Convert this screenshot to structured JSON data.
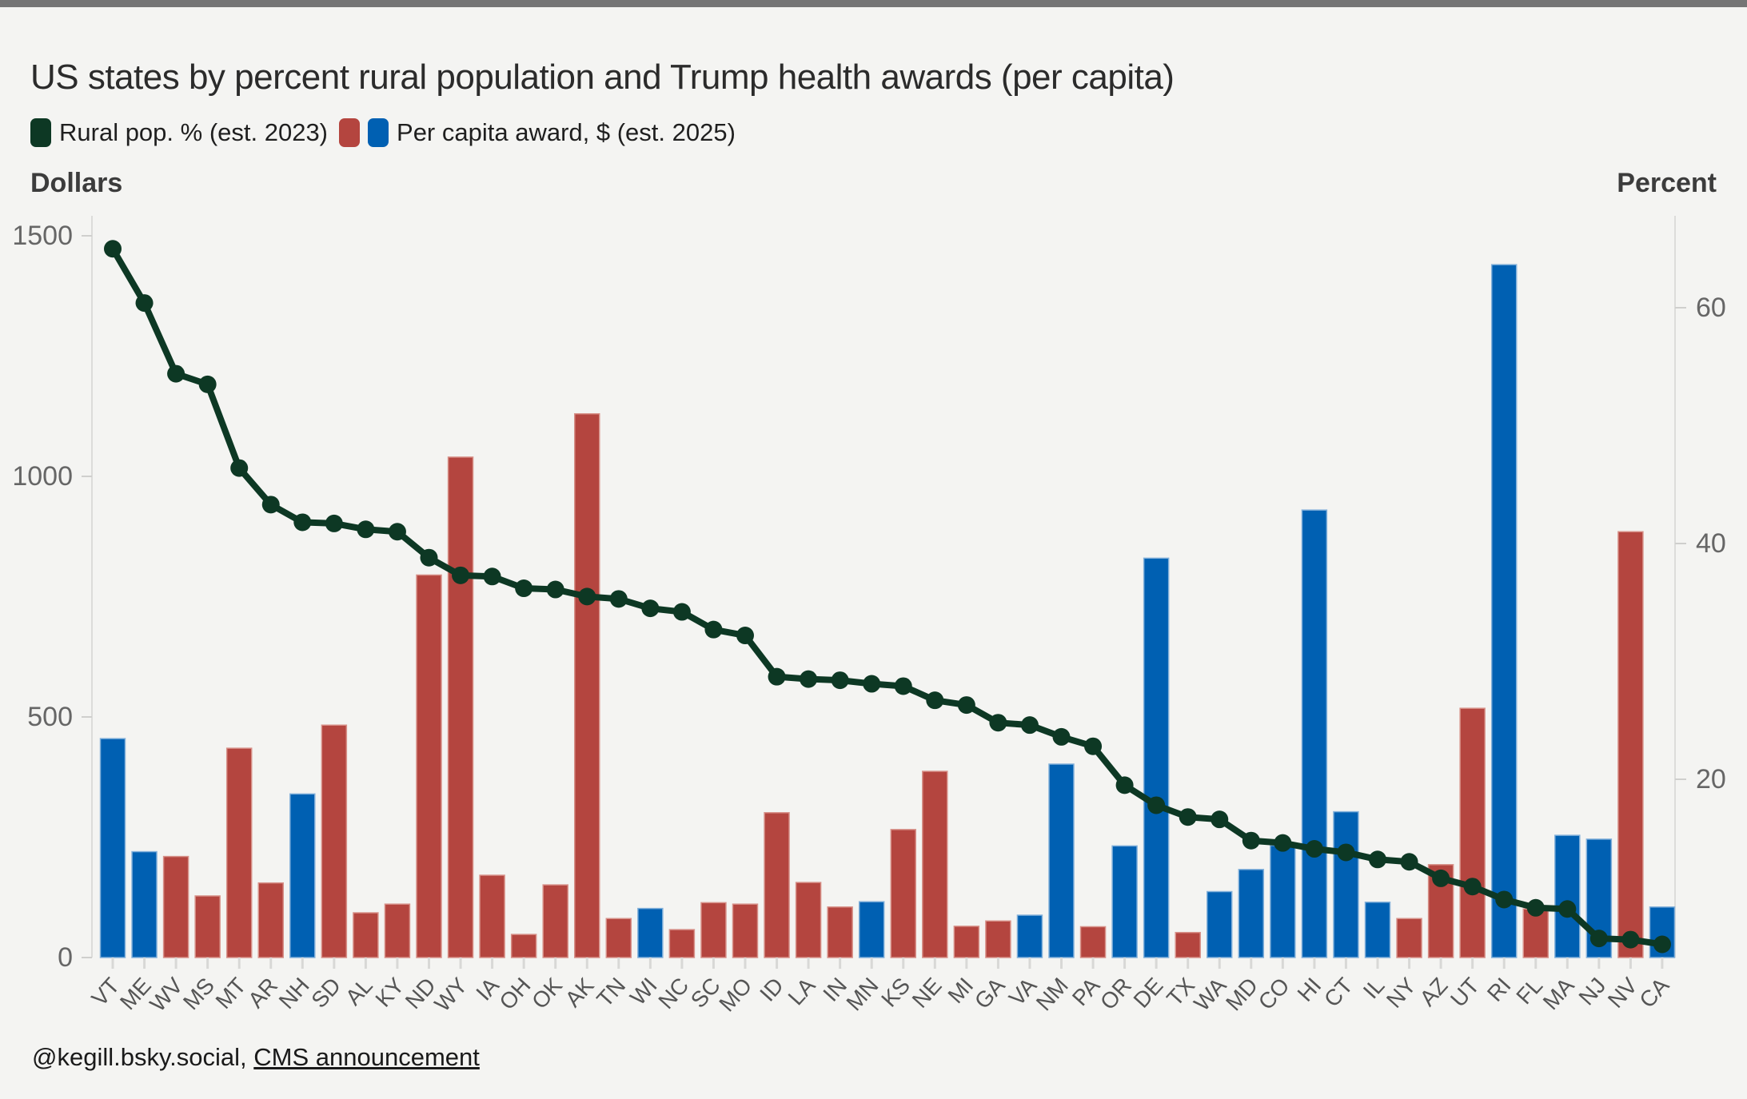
{
  "title": "US states by percent rural population and Trump health awards (per capita)",
  "legend": {
    "rural_label": "Rural pop. % (est. 2023)",
    "award_label": "Per capita award, $ (est. 2025)"
  },
  "left_axis": {
    "label": "Dollars",
    "ticks": [
      0,
      500,
      1000,
      1500
    ],
    "max": 1500
  },
  "right_axis": {
    "label": "Percent",
    "ticks": [
      20,
      40,
      60
    ]
  },
  "footer": {
    "handle": "@kegill.bsky.social, ",
    "link_text": "CMS announcement"
  },
  "colors": {
    "line_green": "#0d3824",
    "bar_red": "#b4453f",
    "bar_red_edge": "#d79088",
    "bar_blue": "#0060b2",
    "bar_blue_edge": "#82b0da",
    "axis_line": "#dcdcda",
    "tick_text": "#666666",
    "x_label_text": "#555555",
    "background": "#f4f4f2",
    "topbar_gray": "#757575"
  },
  "chart_data": {
    "type": "bar+line (dual axis)",
    "title": "US states by percent rural population and Trump health awards (per capita)",
    "categories": [
      "VT",
      "ME",
      "WV",
      "MS",
      "MT",
      "AR",
      "NH",
      "SD",
      "AL",
      "KY",
      "ND",
      "WY",
      "IA",
      "OH",
      "OK",
      "AK",
      "TN",
      "WI",
      "NC",
      "SC",
      "MO",
      "ID",
      "LA",
      "IN",
      "MN",
      "KS",
      "NE",
      "MI",
      "GA",
      "VA",
      "NM",
      "PA",
      "OR",
      "DE",
      "TX",
      "WA",
      "MD",
      "CO",
      "HI",
      "CT",
      "IL",
      "NY",
      "AZ",
      "UT",
      "RI",
      "FL",
      "MA",
      "NJ",
      "NV",
      "CA"
    ],
    "series": [
      {
        "name": "Per capita award, $ (est. 2025)",
        "type": "bar",
        "axis": "left",
        "unit": "dollars",
        "values": [
          455,
          220,
          210,
          128,
          435,
          155,
          340,
          483,
          93,
          111,
          795,
          1040,
          171,
          48,
          151,
          1130,
          81,
          102,
          58,
          114,
          111,
          301,
          156,
          105,
          116,
          266,
          387,
          65,
          76,
          88,
          402,
          64,
          232,
          830,
          52,
          137,
          183,
          233,
          930,
          303,
          115,
          81,
          193,
          518,
          1440,
          101,
          254,
          246,
          885,
          105
        ],
        "bar_colors": [
          "blue",
          "blue",
          "red",
          "red",
          "red",
          "red",
          "blue",
          "red",
          "red",
          "red",
          "red",
          "red",
          "red",
          "red",
          "red",
          "red",
          "red",
          "blue",
          "red",
          "red",
          "red",
          "red",
          "red",
          "red",
          "blue",
          "red",
          "red",
          "red",
          "red",
          "blue",
          "blue",
          "red",
          "blue",
          "blue",
          "red",
          "blue",
          "blue",
          "blue",
          "blue",
          "blue",
          "blue",
          "red",
          "red",
          "red",
          "blue",
          "red",
          "blue",
          "blue",
          "red",
          "blue"
        ]
      },
      {
        "name": "Rural pop. % (est. 2023)",
        "type": "line",
        "axis": "right",
        "unit": "percent",
        "values": [
          65.0,
          60.4,
          54.4,
          53.5,
          46.4,
          43.3,
          41.8,
          41.7,
          41.2,
          41.0,
          38.8,
          37.3,
          37.2,
          36.2,
          36.1,
          35.5,
          35.3,
          34.5,
          34.2,
          32.7,
          32.2,
          28.7,
          28.5,
          28.4,
          28.1,
          27.9,
          26.7,
          26.3,
          24.8,
          24.6,
          23.6,
          22.8,
          19.5,
          17.8,
          16.8,
          16.6,
          14.8,
          14.6,
          14.1,
          13.8,
          13.2,
          13.0,
          11.6,
          10.9,
          9.8,
          9.1,
          9.0,
          6.5,
          6.4,
          6.0
        ]
      }
    ],
    "left_axis": {
      "label": "Dollars",
      "ticks": [
        0,
        500,
        1000,
        1500
      ]
    },
    "right_axis": {
      "label": "Percent",
      "ticks": [
        20,
        40,
        60
      ]
    },
    "grid": "off",
    "legend_position": "top-left"
  }
}
